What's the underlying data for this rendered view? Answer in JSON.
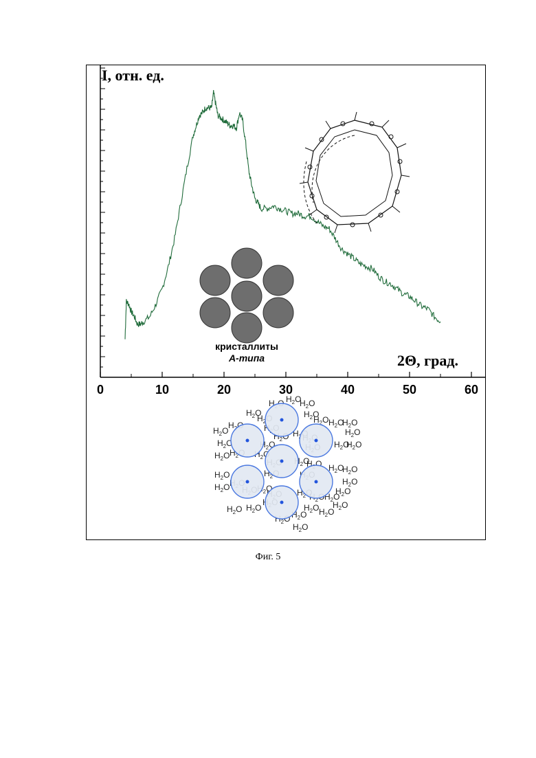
{
  "caption": "Фиг. 5",
  "colors": {
    "curve": "#1f6b3a",
    "crystallite_disk": "#6e6e6e",
    "hydrated_disk_fill": "#e2e8f2",
    "hydrated_disk_stroke": "#4a78e0",
    "hydrated_center": "#2255dd"
  },
  "chart_data": {
    "type": "line",
    "ylabel": "I, отн. ед.",
    "xlabel": "2Θ, град.",
    "xlim": [
      0,
      60
    ],
    "ylim": [
      0,
      100
    ],
    "x_tick_labels": [
      "0",
      "10",
      "20",
      "30",
      "40",
      "50",
      "60"
    ],
    "y_tick_labels_shown": false,
    "grid": false,
    "series": [
      {
        "x": [
          4.0,
          4.2,
          4.6,
          5.0,
          5.5,
          6.0,
          6.5,
          7.0,
          8.0,
          9.0,
          10.0,
          11.0,
          12.0,
          13.0,
          14.0,
          15.0,
          15.5,
          16.0,
          16.5,
          17.0,
          17.5,
          18.0,
          18.3,
          18.7,
          19.0,
          19.5,
          20.0,
          20.5,
          21.0,
          21.5,
          22.0,
          22.5,
          23.0,
          23.5,
          24.0,
          24.5,
          25.0,
          25.5,
          26.0,
          27.0,
          28.0,
          29.0,
          30.0,
          31.0,
          32.0,
          33.0,
          34.0,
          35.0,
          36.0,
          37.0,
          38.0,
          39.0,
          40.0,
          41.0,
          42.0,
          43.0,
          44.0,
          45.0,
          46.0,
          47.0,
          48.0,
          49.0,
          50.0,
          51.0,
          52.0,
          53.0,
          54.0,
          55.0
        ],
        "y": [
          2,
          17,
          16,
          13,
          11,
          8,
          8,
          9,
          11,
          16,
          22,
          31,
          42,
          56,
          70,
          83,
          87,
          91,
          92,
          94,
          94,
          94,
          100,
          95,
          91,
          90,
          89,
          88,
          87,
          87,
          86,
          92,
          89,
          80,
          69,
          63,
          58,
          56,
          54,
          54,
          55,
          54,
          53,
          52,
          52,
          51,
          51,
          49,
          47,
          46,
          42,
          38,
          36,
          34,
          32,
          31,
          30,
          27,
          25,
          24,
          22,
          20,
          19,
          17,
          15,
          14,
          11,
          9
        ]
      }
    ]
  },
  "insets": {
    "crystallite_label_line1": "кристаллиты",
    "crystallite_label_line2": "А-типа",
    "water_formula": "H2O",
    "water_symbol": "H",
    "water_subscript": "2",
    "water_oxygen": "O"
  }
}
